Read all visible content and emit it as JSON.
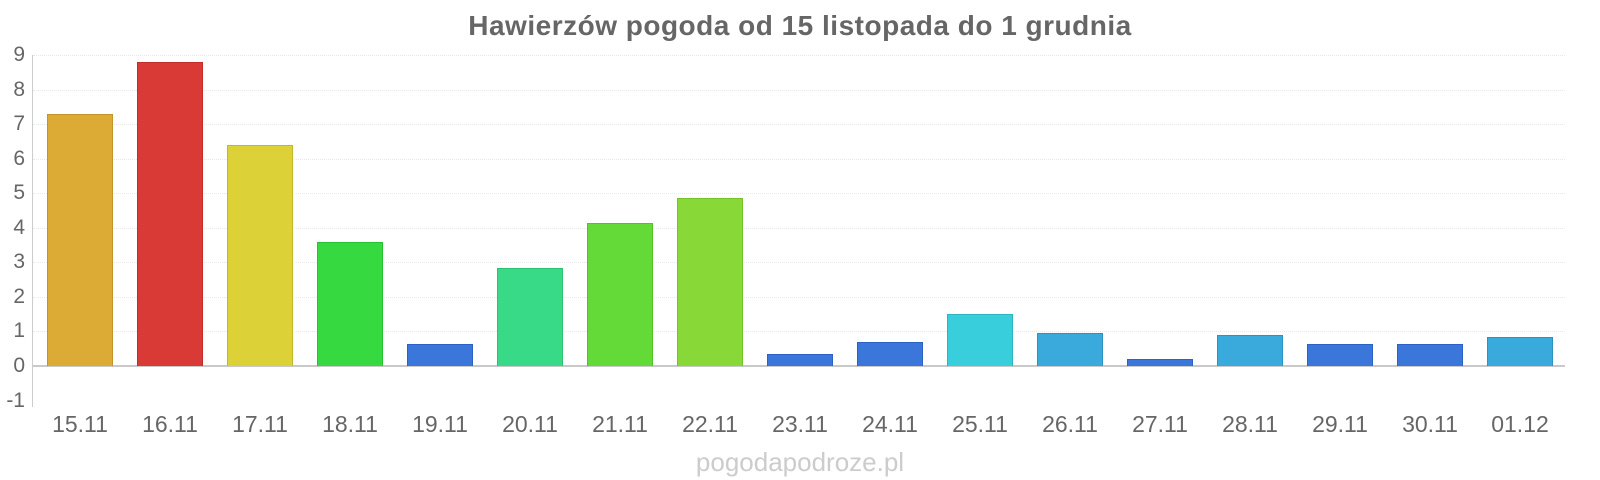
{
  "page": {
    "watermark": "pogodapodroze.pl"
  },
  "style": {
    "title_color": "#666666",
    "axis_label_color": "#666666",
    "grid_color": "#e8e8e8",
    "zero_line_color": "#c9c9c9",
    "axis_line_color": "#cccccc",
    "watermark_color": "#cccccc",
    "background": "#ffffff"
  },
  "chart_data": {
    "type": "bar",
    "title": "Hawierzów pogoda od 15 listopada do 1 grudnia",
    "xlabel": "",
    "ylabel": "",
    "ylim": [
      -1,
      9
    ],
    "yticks": [
      9,
      8,
      7,
      6,
      5,
      4,
      3,
      2,
      1,
      0,
      -1
    ],
    "grid": "horizontal dotted gridlines, solid zero line, no vertical grid",
    "legend_position": "none",
    "categories": [
      "15.11",
      "16.11",
      "17.11",
      "18.11",
      "19.11",
      "20.11",
      "21.11",
      "22.11",
      "23.11",
      "24.11",
      "25.11",
      "26.11",
      "27.11",
      "28.11",
      "29.11",
      "30.11",
      "01.12"
    ],
    "values": [
      7.3,
      8.8,
      6.4,
      3.6,
      0.65,
      2.85,
      4.15,
      4.85,
      0.35,
      0.7,
      1.5,
      0.95,
      0.2,
      0.9,
      0.65,
      0.65,
      0.85
    ],
    "bar_colors": [
      "#dcab36",
      "#d93a36",
      "#dcd136",
      "#36d93f",
      "#3b76db",
      "#39da87",
      "#63da38",
      "#88d938",
      "#3b76db",
      "#3b76db",
      "#39cedb",
      "#39aadb",
      "#3b76db",
      "#39aadb",
      "#3b76db",
      "#3b76db",
      "#39aadb"
    ],
    "bar_border_colors": [
      "#c39427",
      "#c22d29",
      "#c3b827",
      "#28c231",
      "#2d62c4",
      "#2bc271",
      "#52c229",
      "#75c229",
      "#2d62c4",
      "#2d62c4",
      "#2bb5c2",
      "#2b93c4",
      "#2d62c4",
      "#2b93c4",
      "#2d62c4",
      "#2d62c4",
      "#2b93c4"
    ]
  }
}
